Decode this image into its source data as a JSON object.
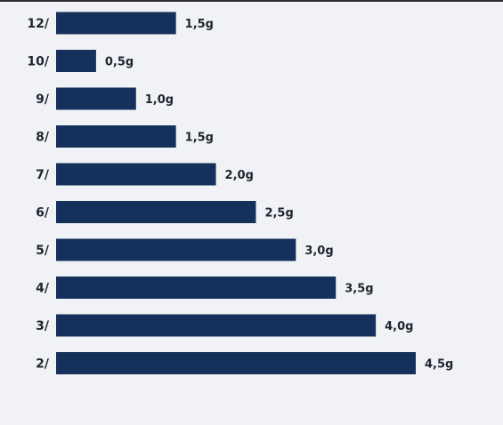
{
  "chart_data": {
    "type": "bar",
    "orientation": "horizontal",
    "title": "",
    "xlabel": "",
    "ylabel": "",
    "categories": [
      "12/",
      "10/",
      "9/",
      "8/",
      "7/",
      "6/",
      "5/",
      "4/",
      "3/",
      "2/"
    ],
    "values": [
      1.5,
      0.5,
      1.0,
      1.5,
      2.0,
      2.5,
      3.0,
      3.5,
      4.0,
      4.5
    ],
    "value_labels": [
      "1,5g",
      "0,5g",
      "1,0g",
      "1,5g",
      "2,0g",
      "2,5g",
      "3,0g",
      "3,5g",
      "4,0g",
      "4,5g"
    ],
    "xlim": [
      0,
      4.5
    ],
    "grid": false,
    "bar_color": "#15305a"
  }
}
